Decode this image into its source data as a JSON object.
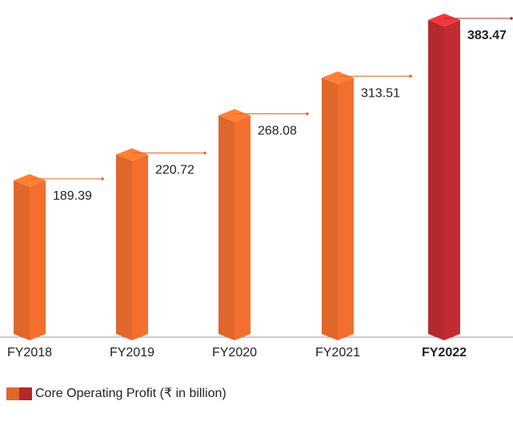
{
  "chart_data": {
    "type": "bar3d",
    "categories": [
      "FY2018",
      "FY2019",
      "FY2020",
      "FY2021",
      "FY2022"
    ],
    "values": [
      189.39,
      220.72,
      268.08,
      313.51,
      383.47
    ],
    "colors": [
      "#e0672a",
      "#e0672a",
      "#e0672a",
      "#e0672a",
      "#b5282e"
    ],
    "legend": "Core Operating Profit (₹ in billion)"
  }
}
